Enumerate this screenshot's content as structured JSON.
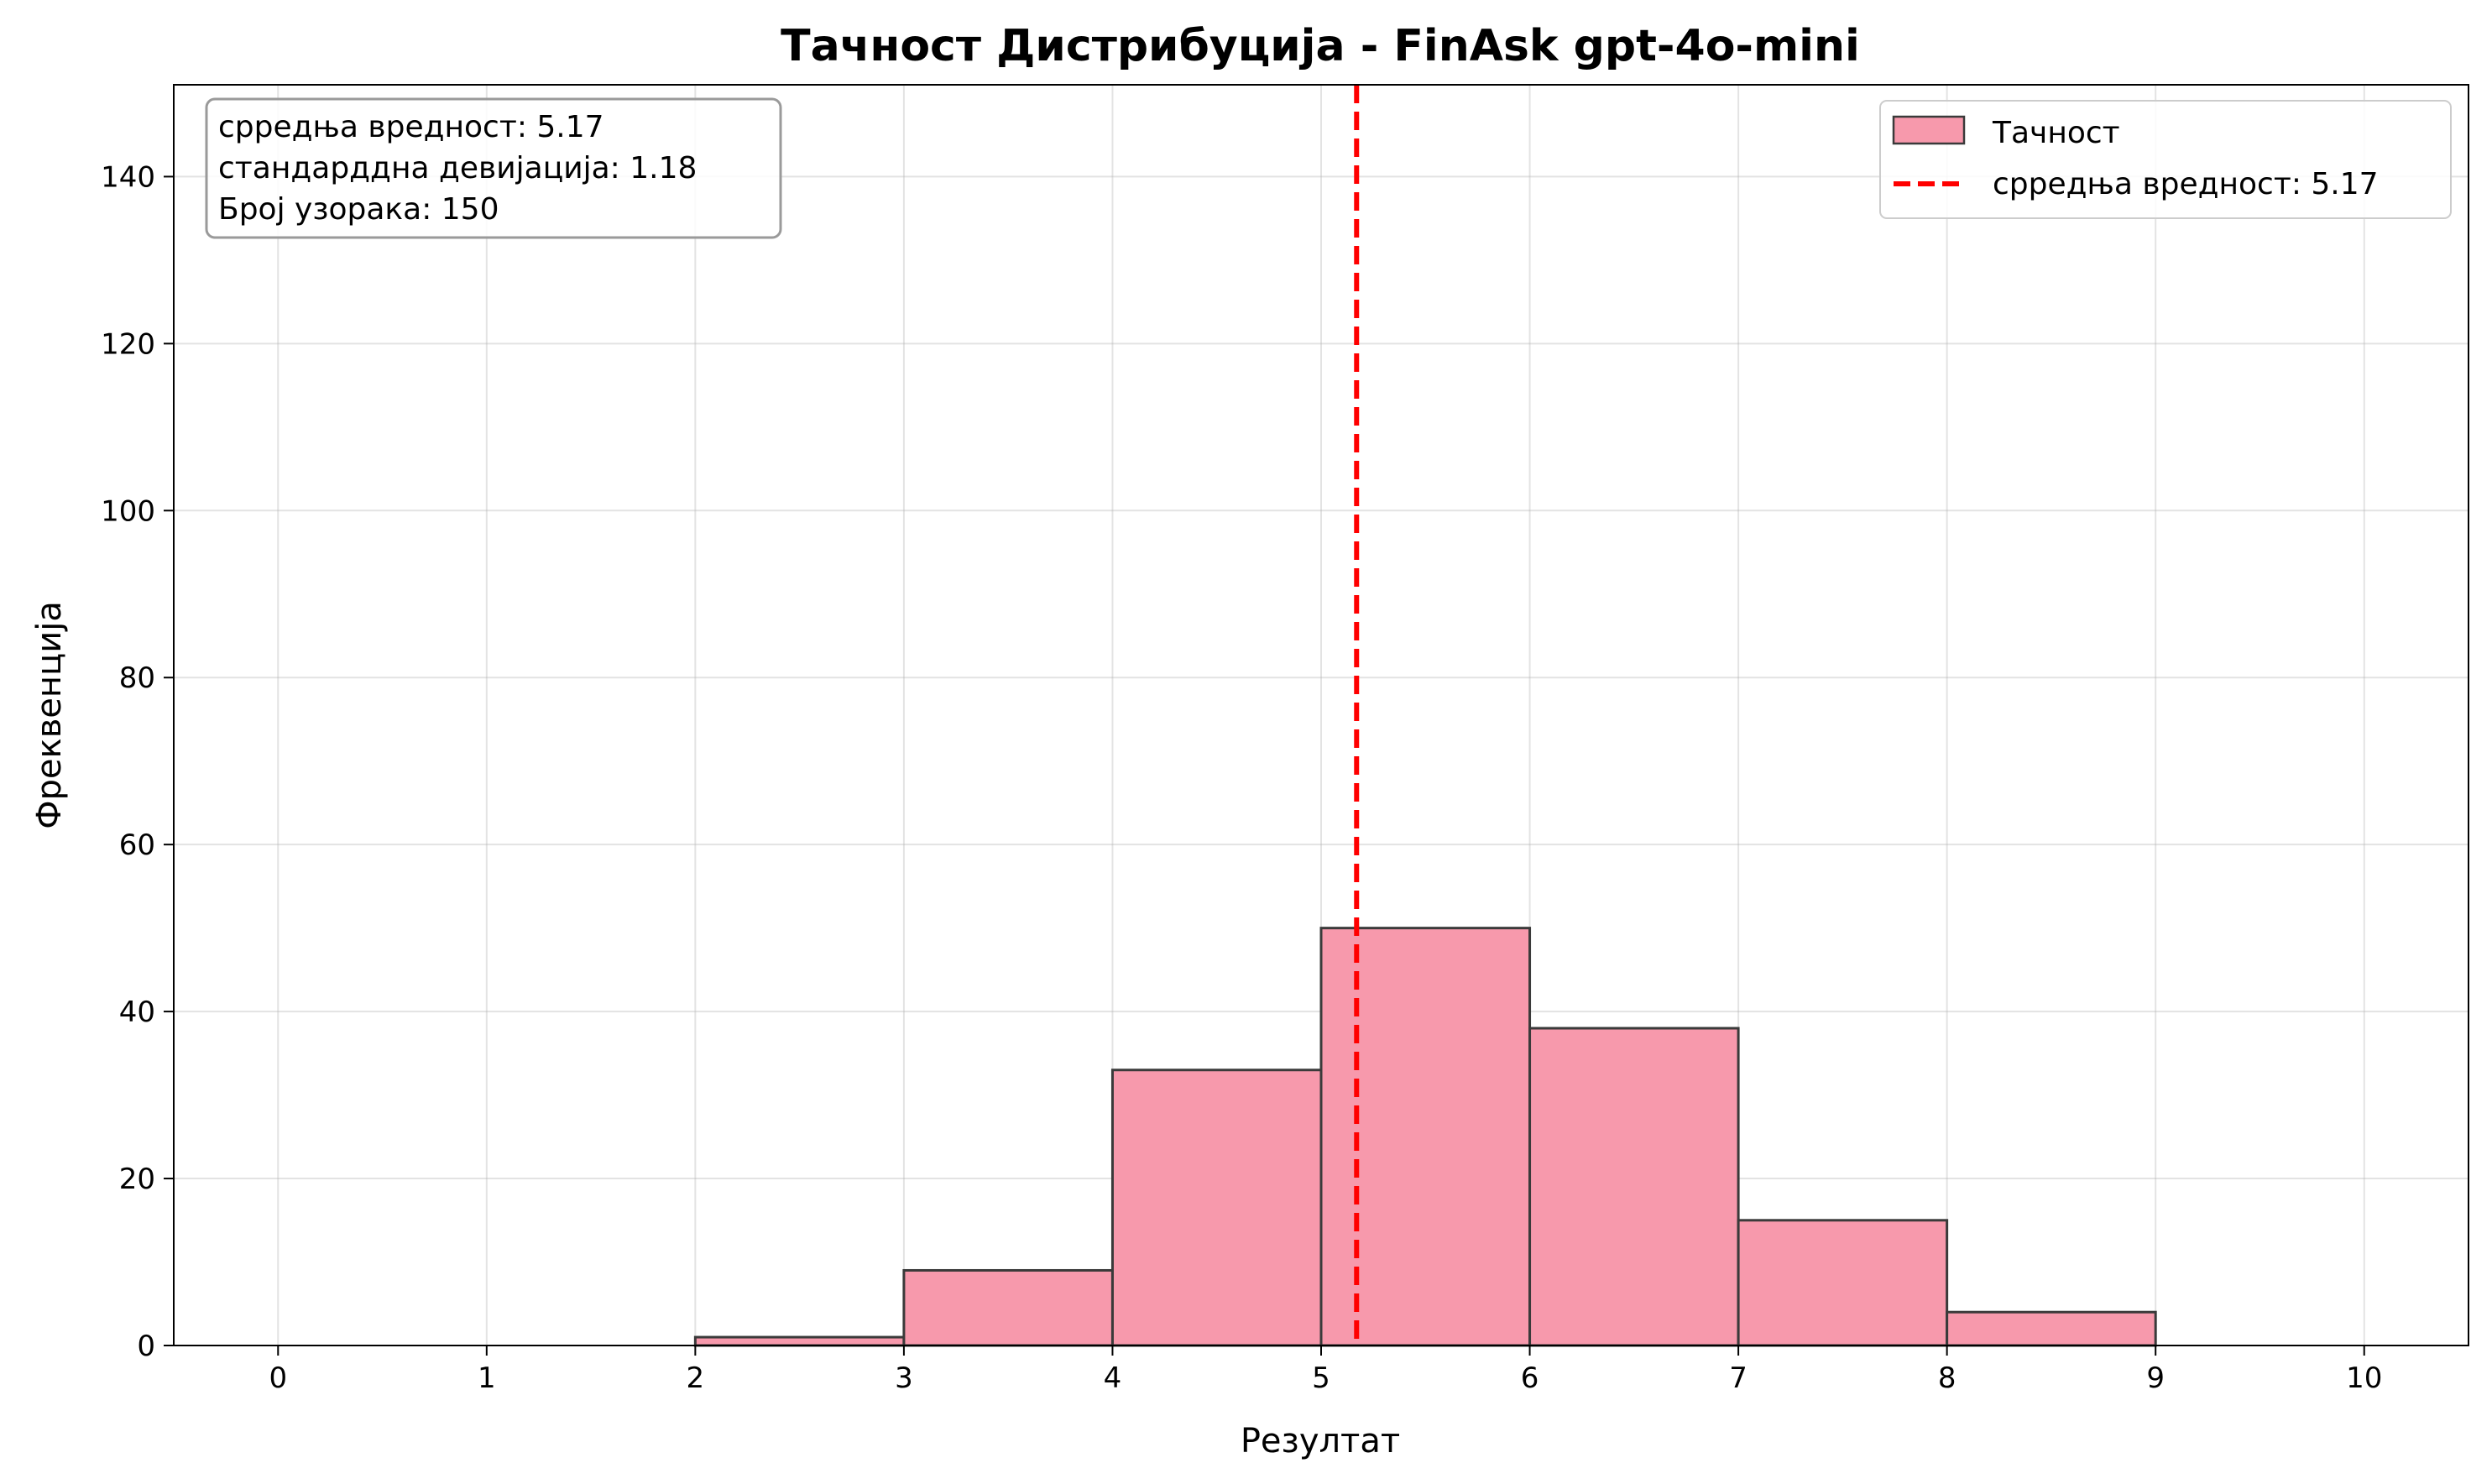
{
  "chart_data": {
    "type": "bar",
    "title": "Тачност Дистрибуција - FinAsk gpt-4o-mini",
    "xlabel": "Резултат",
    "ylabel": "Фреквенција",
    "xlim": [
      -0.5,
      10.5
    ],
    "ylim": [
      0,
      151
    ],
    "xticks": [
      "0",
      "1",
      "2",
      "3",
      "4",
      "5",
      "6",
      "7",
      "8",
      "9",
      "10"
    ],
    "yticks": [
      "0",
      "20",
      "40",
      "60",
      "80",
      "100",
      "120",
      "140"
    ],
    "grid": true,
    "bins": [
      {
        "start": 0,
        "end": 1,
        "value": 0
      },
      {
        "start": 1,
        "end": 2,
        "value": 0
      },
      {
        "start": 2,
        "end": 3,
        "value": 1
      },
      {
        "start": 3,
        "end": 4,
        "value": 9
      },
      {
        "start": 4,
        "end": 5,
        "value": 33
      },
      {
        "start": 5,
        "end": 6,
        "value": 50
      },
      {
        "start": 6,
        "end": 7,
        "value": 38
      },
      {
        "start": 7,
        "end": 8,
        "value": 15
      },
      {
        "start": 8,
        "end": 9,
        "value": 4
      },
      {
        "start": 9,
        "end": 10,
        "value": 0
      }
    ],
    "bar_color": "#f799ac",
    "bar_edge_color": "#3a3a3a",
    "mean_line": {
      "x": 5.17,
      "color": "#ff0000",
      "style": "dashed"
    },
    "legend": {
      "position": "top-right",
      "items": [
        {
          "label": "Тачност",
          "kind": "patch"
        },
        {
          "label": "срредња вредност: 5.17",
          "kind": "dashed-line"
        }
      ]
    },
    "stats_box": {
      "position": "top-left",
      "lines": [
        "срредња вредност: 5.17",
        "стандарддна девијација: 1.18",
        "Број узорака: 150"
      ]
    }
  }
}
